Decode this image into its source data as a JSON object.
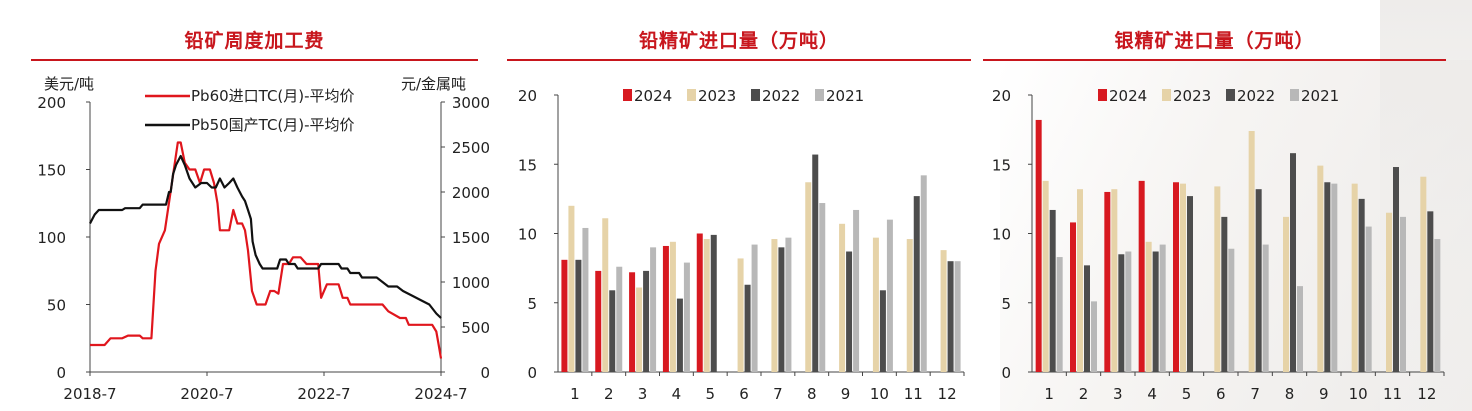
{
  "colors": {
    "title_red": "#c8161d",
    "pb60_line": "#e0161d",
    "pb50_line": "#111111",
    "y2024": "#d71920",
    "y2023": "#e6d3a8",
    "y2022": "#4d4d4d",
    "y2021": "#b8b8b8"
  },
  "panels": {
    "tc": {
      "title": "铅矿周度加工费"
    },
    "lead": {
      "title": "铅精矿进口量（万吨）"
    },
    "silver": {
      "title": "银精矿进口量（万吨）"
    }
  },
  "chart_data": [
    {
      "type": "line",
      "title": "铅矿周度加工费",
      "ylabel_left": "美元/吨",
      "ylabel_right": "元/金属吨",
      "ylim_left": [
        0,
        200
      ],
      "ylim_right": [
        0,
        3000
      ],
      "yticks_left": [
        "0",
        "50",
        "100",
        "150",
        "200"
      ],
      "yticks_right": [
        "0",
        "500",
        "1000",
        "1500",
        "2000",
        "2500",
        "3000"
      ],
      "xtick_labels": [
        "2018-7",
        "2020-7",
        "2022-7",
        "2024-7"
      ],
      "xlim": [
        2018.5,
        2024.5
      ],
      "legend": "top-left",
      "series": [
        {
          "name": "Pb60进口TC(月)-平均价",
          "axis": "left",
          "points": [
            [
              2018.5,
              20
            ],
            [
              2018.75,
              20
            ],
            [
              2018.85,
              25
            ],
            [
              2019.05,
              25
            ],
            [
              2019.15,
              27
            ],
            [
              2019.35,
              27
            ],
            [
              2019.4,
              25
            ],
            [
              2019.55,
              25
            ],
            [
              2019.62,
              75
            ],
            [
              2019.68,
              95
            ],
            [
              2019.78,
              105
            ],
            [
              2019.9,
              140
            ],
            [
              2020.0,
              170
            ],
            [
              2020.05,
              170
            ],
            [
              2020.12,
              155
            ],
            [
              2020.2,
              150
            ],
            [
              2020.3,
              150
            ],
            [
              2020.38,
              140
            ],
            [
              2020.45,
              150
            ],
            [
              2020.55,
              150
            ],
            [
              2020.62,
              140
            ],
            [
              2020.68,
              125
            ],
            [
              2020.72,
              105
            ],
            [
              2020.88,
              105
            ],
            [
              2020.95,
              120
            ],
            [
              2021.02,
              110
            ],
            [
              2021.1,
              110
            ],
            [
              2021.15,
              105
            ],
            [
              2021.2,
              90
            ],
            [
              2021.27,
              60
            ],
            [
              2021.35,
              50
            ],
            [
              2021.5,
              50
            ],
            [
              2021.58,
              60
            ],
            [
              2021.65,
              60
            ],
            [
              2021.72,
              58
            ],
            [
              2021.8,
              80
            ],
            [
              2021.9,
              80
            ],
            [
              2021.97,
              85
            ],
            [
              2022.1,
              85
            ],
            [
              2022.2,
              80
            ],
            [
              2022.32,
              80
            ],
            [
              2022.4,
              80
            ],
            [
              2022.45,
              55
            ],
            [
              2022.55,
              65
            ],
            [
              2022.75,
              65
            ],
            [
              2022.82,
              55
            ],
            [
              2022.9,
              55
            ],
            [
              2022.95,
              50
            ],
            [
              2023.5,
              50
            ],
            [
              2023.6,
              45
            ],
            [
              2023.8,
              40
            ],
            [
              2023.9,
              40
            ],
            [
              2023.95,
              35
            ],
            [
              2024.35,
              35
            ],
            [
              2024.42,
              30
            ],
            [
              2024.46,
              20
            ],
            [
              2024.5,
              10
            ]
          ]
        },
        {
          "name": "Pb50国产TC(月)-平均价",
          "axis": "right",
          "points": [
            [
              2018.5,
              1650
            ],
            [
              2018.58,
              1750
            ],
            [
              2018.65,
              1800
            ],
            [
              2019.05,
              1800
            ],
            [
              2019.1,
              1820
            ],
            [
              2019.35,
              1820
            ],
            [
              2019.4,
              1860
            ],
            [
              2019.8,
              1860
            ],
            [
              2019.85,
              2000
            ],
            [
              2019.88,
              2000
            ],
            [
              2019.92,
              2200
            ],
            [
              2019.97,
              2300
            ],
            [
              2020.05,
              2400
            ],
            [
              2020.12,
              2300
            ],
            [
              2020.2,
              2150
            ],
            [
              2020.3,
              2050
            ],
            [
              2020.4,
              2100
            ],
            [
              2020.5,
              2100
            ],
            [
              2020.58,
              2050
            ],
            [
              2020.65,
              2050
            ],
            [
              2020.72,
              2150
            ],
            [
              2020.8,
              2050
            ],
            [
              2020.88,
              2100
            ],
            [
              2020.95,
              2150
            ],
            [
              2021.02,
              2050
            ],
            [
              2021.1,
              1950
            ],
            [
              2021.15,
              1900
            ],
            [
              2021.2,
              1800
            ],
            [
              2021.25,
              1700
            ],
            [
              2021.28,
              1450
            ],
            [
              2021.33,
              1300
            ],
            [
              2021.4,
              1200
            ],
            [
              2021.45,
              1150
            ],
            [
              2021.7,
              1150
            ],
            [
              2021.75,
              1250
            ],
            [
              2021.85,
              1250
            ],
            [
              2021.9,
              1200
            ],
            [
              2022.0,
              1200
            ],
            [
              2022.05,
              1150
            ],
            [
              2022.4,
              1150
            ],
            [
              2022.45,
              1200
            ],
            [
              2022.75,
              1200
            ],
            [
              2022.8,
              1150
            ],
            [
              2022.9,
              1150
            ],
            [
              2022.95,
              1100
            ],
            [
              2023.1,
              1100
            ],
            [
              2023.15,
              1050
            ],
            [
              2023.4,
              1050
            ],
            [
              2023.5,
              1000
            ],
            [
              2023.6,
              950
            ],
            [
              2023.75,
              950
            ],
            [
              2023.85,
              900
            ],
            [
              2024.0,
              850
            ],
            [
              2024.15,
              800
            ],
            [
              2024.3,
              750
            ],
            [
              2024.42,
              650
            ],
            [
              2024.5,
              600
            ]
          ]
        }
      ]
    },
    {
      "type": "bar",
      "title": "铅精矿进口量（万吨）",
      "ylim": [
        0,
        20
      ],
      "yticks": [
        "0",
        "5",
        "10",
        "15",
        "20"
      ],
      "categories": [
        "1",
        "2",
        "3",
        "4",
        "5",
        "6",
        "7",
        "8",
        "9",
        "10",
        "11",
        "12"
      ],
      "legend": "top-center",
      "series": [
        {
          "name": "2024",
          "values": [
            8.1,
            7.3,
            7.2,
            9.1,
            10.0,
            null,
            null,
            null,
            null,
            null,
            null,
            null
          ]
        },
        {
          "name": "2023",
          "values": [
            12.0,
            11.1,
            6.1,
            9.4,
            9.6,
            8.2,
            9.6,
            13.7,
            10.7,
            9.7,
            9.6,
            8.8
          ]
        },
        {
          "name": "2022",
          "values": [
            8.1,
            5.9,
            7.3,
            5.3,
            9.9,
            6.3,
            9.0,
            15.7,
            8.7,
            5.9,
            12.7,
            8.0
          ]
        },
        {
          "name": "2021",
          "values": [
            10.4,
            7.6,
            9.0,
            7.9,
            null,
            9.2,
            9.7,
            12.2,
            11.7,
            11.0,
            14.2,
            8.0
          ]
        }
      ]
    },
    {
      "type": "bar",
      "title": "银精矿进口量（万吨）",
      "ylim": [
        0,
        20
      ],
      "yticks": [
        "0",
        "5",
        "10",
        "15",
        "20"
      ],
      "categories": [
        "1",
        "2",
        "3",
        "4",
        "5",
        "6",
        "7",
        "8",
        "9",
        "10",
        "11",
        "12"
      ],
      "legend": "top-center",
      "series": [
        {
          "name": "2024",
          "values": [
            18.2,
            10.8,
            13.0,
            13.8,
            13.7,
            null,
            null,
            null,
            null,
            null,
            null,
            null
          ]
        },
        {
          "name": "2023",
          "values": [
            13.8,
            13.2,
            13.2,
            9.4,
            13.6,
            13.4,
            17.4,
            11.2,
            14.9,
            13.6,
            11.5,
            14.1
          ]
        },
        {
          "name": "2022",
          "values": [
            11.7,
            7.7,
            8.5,
            8.7,
            12.7,
            11.2,
            13.2,
            15.8,
            13.7,
            12.5,
            14.8,
            11.6
          ]
        },
        {
          "name": "2021",
          "values": [
            8.3,
            5.1,
            8.7,
            9.2,
            null,
            8.9,
            9.2,
            6.2,
            13.6,
            10.5,
            11.2,
            9.6
          ]
        }
      ]
    }
  ]
}
